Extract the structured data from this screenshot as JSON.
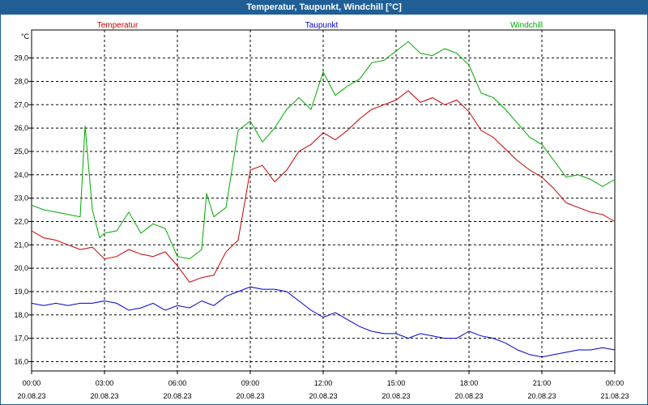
{
  "window": {
    "title": "Temperatur, Taupunkt, Windchill [°C]"
  },
  "chart_data": {
    "type": "line",
    "title": "Temperatur, Taupunkt, Windchill [°C]",
    "ylabel": "°C",
    "ylim": [
      15.6,
      30.2
    ],
    "xlim": [
      0,
      24
    ],
    "y_ticks": [
      "16,0",
      "17,0",
      "18,0",
      "19,0",
      "20,0",
      "21,0",
      "22,0",
      "23,0",
      "24,0",
      "25,0",
      "26,0",
      "27,0",
      "28,0",
      "29,0"
    ],
    "x_ticks": [
      {
        "time": "00:00",
        "date": "20.08.23"
      },
      {
        "time": "03:00",
        "date": "20.08.23"
      },
      {
        "time": "06:00",
        "date": "20.08.23"
      },
      {
        "time": "09:00",
        "date": "20.08.23"
      },
      {
        "time": "12:00",
        "date": "20.08.23"
      },
      {
        "time": "15:00",
        "date": "20.08.23"
      },
      {
        "time": "18:00",
        "date": "20.08.23"
      },
      {
        "time": "21:00",
        "date": "20.08.23"
      },
      {
        "time": "00:00",
        "date": "21.08.23"
      }
    ],
    "grid": true,
    "series": [
      {
        "name": "Temperatur",
        "color": "#cc0000",
        "x": [
          0,
          0.5,
          1,
          1.5,
          2,
          2.5,
          3,
          3.5,
          4,
          4.5,
          5,
          5.5,
          6,
          6.5,
          7,
          7.5,
          8,
          8.5,
          9,
          9.5,
          10,
          10.5,
          11,
          11.5,
          12,
          12.5,
          13,
          13.5,
          14,
          14.5,
          15,
          15.5,
          16,
          16.5,
          17,
          17.5,
          18,
          18.5,
          19,
          19.5,
          20,
          20.5,
          21,
          21.5,
          22,
          22.5,
          23,
          23.5,
          24
        ],
        "y": [
          21.6,
          21.3,
          21.2,
          21.0,
          20.8,
          20.9,
          20.4,
          20.5,
          20.8,
          20.6,
          20.5,
          20.7,
          20.1,
          19.4,
          19.6,
          19.7,
          20.7,
          21.2,
          24.2,
          24.4,
          23.7,
          24.2,
          25.0,
          25.3,
          25.8,
          25.5,
          25.9,
          26.4,
          26.8,
          27.0,
          27.2,
          27.6,
          27.1,
          27.3,
          27.0,
          27.2,
          26.7,
          25.9,
          25.6,
          25.1,
          24.6,
          24.2,
          23.9,
          23.4,
          22.8,
          22.6,
          22.4,
          22.3,
          22.0
        ]
      },
      {
        "name": "Taupunkt",
        "color": "#0000cc",
        "x": [
          0,
          0.5,
          1,
          1.5,
          2,
          2.5,
          3,
          3.5,
          4,
          4.5,
          5,
          5.5,
          6,
          6.5,
          7,
          7.5,
          8,
          8.5,
          9,
          9.5,
          10,
          10.5,
          11,
          11.5,
          12,
          12.5,
          13,
          13.5,
          14,
          14.5,
          15,
          15.5,
          16,
          16.5,
          17,
          17.5,
          18,
          18.5,
          19,
          19.5,
          20,
          20.5,
          21,
          21.5,
          22,
          22.5,
          23,
          23.5,
          24
        ],
        "y": [
          18.5,
          18.4,
          18.5,
          18.4,
          18.5,
          18.5,
          18.6,
          18.5,
          18.2,
          18.3,
          18.5,
          18.2,
          18.4,
          18.3,
          18.6,
          18.4,
          18.8,
          19.0,
          19.2,
          19.1,
          19.1,
          19.0,
          18.6,
          18.2,
          17.9,
          18.1,
          17.8,
          17.5,
          17.3,
          17.2,
          17.2,
          17.0,
          17.2,
          17.1,
          17.0,
          17.0,
          17.3,
          17.1,
          17.0,
          16.8,
          16.5,
          16.3,
          16.2,
          16.3,
          16.4,
          16.5,
          16.5,
          16.6,
          16.5
        ]
      },
      {
        "name": "Windchill",
        "color": "#00aa00",
        "x": [
          0,
          0.5,
          1,
          1.5,
          2,
          2.2,
          2.5,
          2.8,
          3,
          3.5,
          4,
          4.5,
          5,
          5.5,
          6,
          6.5,
          7,
          7.2,
          7.5,
          8,
          8.5,
          9,
          9.5,
          10,
          10.5,
          11,
          11.5,
          12,
          12.5,
          13,
          13.5,
          14,
          14.5,
          15,
          15.5,
          16,
          16.5,
          17,
          17.5,
          18,
          18.5,
          19,
          19.5,
          20,
          20.5,
          21,
          21.5,
          22,
          22.5,
          23,
          23.5,
          24
        ],
        "y": [
          22.7,
          22.5,
          22.4,
          22.3,
          22.2,
          26.1,
          22.5,
          21.3,
          21.5,
          21.6,
          22.4,
          21.5,
          21.9,
          21.7,
          20.5,
          20.4,
          20.8,
          23.2,
          22.2,
          22.6,
          25.9,
          26.3,
          25.4,
          26.0,
          26.8,
          27.3,
          26.8,
          28.4,
          27.4,
          27.8,
          28.1,
          28.8,
          28.9,
          29.3,
          29.7,
          29.2,
          29.1,
          29.4,
          29.2,
          28.7,
          27.5,
          27.3,
          26.8,
          26.2,
          25.6,
          25.3,
          24.6,
          23.9,
          24.0,
          23.8,
          23.5,
          23.8
        ]
      }
    ]
  }
}
